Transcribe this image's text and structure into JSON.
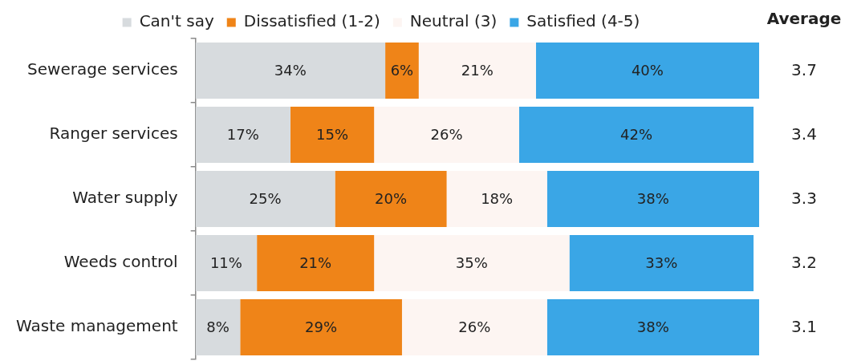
{
  "chart_data": {
    "type": "bar",
    "orientation": "horizontal",
    "stacked": true,
    "categories": [
      "Sewerage services",
      "Ranger services",
      "Water supply",
      "Weeds control",
      "Waste management"
    ],
    "series": [
      {
        "name": "Can't say",
        "color": "#d7dbde",
        "values": [
          34,
          17,
          25,
          11,
          8
        ],
        "value_labels": [
          "34%",
          "17%",
          "25%",
          "11%",
          "8%"
        ]
      },
      {
        "name": "Dissatisfied (1-2)",
        "color": "#ef8418",
        "values": [
          6,
          15,
          20,
          21,
          29
        ],
        "value_labels": [
          "6%",
          "15%",
          "20%",
          "21%",
          "29%"
        ]
      },
      {
        "name": "Neutral (3)",
        "color": "#fdf5f2",
        "values": [
          21,
          26,
          18,
          35,
          26
        ],
        "value_labels": [
          "21%",
          "26%",
          "18%",
          "35%",
          "26%"
        ]
      },
      {
        "name": "Satisfied (4-5)",
        "color": "#3aa6e6",
        "values": [
          40,
          42,
          38,
          33,
          38
        ],
        "value_labels": [
          "40%",
          "42%",
          "38%",
          "33%",
          "38%"
        ]
      }
    ],
    "legend": "top",
    "tick_labels": "y",
    "grid": false,
    "annotations": [
      "Average",
      "3.7",
      "3.4",
      "3.3",
      "3.2",
      "3.1"
    ]
  }
}
